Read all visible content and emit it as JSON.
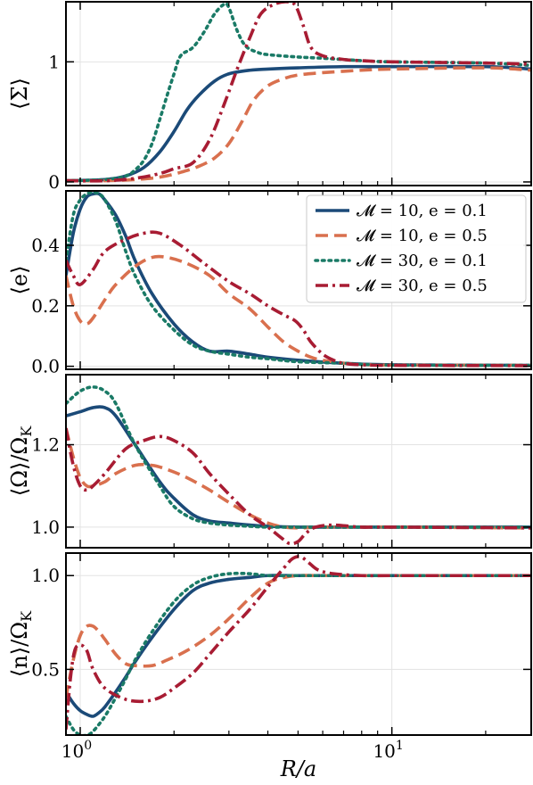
{
  "figure": {
    "xlabel": "R/a",
    "x_ticks": [
      {
        "value": 1,
        "label": "10",
        "exp": "0"
      },
      {
        "value": 10,
        "label": "10",
        "exp": "1"
      }
    ],
    "xlim": [
      0.9,
      28
    ],
    "xscale": "log"
  },
  "colors": {
    "M10_e01": "#1b4a78",
    "M10_e05": "#d9704e",
    "M30_e01": "#1a7a66",
    "M30_e05": "#a81c33"
  },
  "legend": {
    "placement": "upper-right of panel 2",
    "entries": [
      {
        "key": "M10_e01",
        "label": "𝓜 = 10, e = 0.1",
        "style": "solid"
      },
      {
        "key": "M10_e05",
        "label": "𝓜 = 10, e = 0.5",
        "style": "dashed"
      },
      {
        "key": "M30_e01",
        "label": "𝓜 = 30, e = 0.1",
        "style": "dotted"
      },
      {
        "key": "M30_e05",
        "label": "𝓜 = 30, e = 0.5",
        "style": "dashdot"
      }
    ]
  },
  "chart_data": [
    {
      "type": "line",
      "ylabel": "⟨Σ⟩",
      "ylim": [
        -0.03,
        1.5
      ],
      "yticks": [
        {
          "v": 0,
          "t": "0"
        },
        {
          "v": 1,
          "t": "1"
        }
      ],
      "grid": true,
      "series": [
        {
          "key": "M10_e01",
          "x": [
            0.9,
            1.2,
            1.4,
            1.6,
            1.8,
            2.0,
            2.2,
            2.4,
            2.7,
            3.0,
            3.5,
            4.0,
            5.0,
            7.0,
            10,
            20,
            28
          ],
          "y": [
            0.01,
            0.02,
            0.05,
            0.12,
            0.25,
            0.42,
            0.6,
            0.72,
            0.84,
            0.9,
            0.93,
            0.94,
            0.95,
            0.96,
            0.96,
            0.96,
            0.94
          ]
        },
        {
          "key": "M10_e05",
          "x": [
            0.9,
            1.2,
            1.5,
            1.8,
            2.1,
            2.4,
            2.7,
            3.0,
            3.3,
            3.6,
            4.0,
            4.5,
            5.0,
            6.0,
            8.0,
            10,
            20,
            28
          ],
          "y": [
            0.01,
            0.01,
            0.02,
            0.04,
            0.08,
            0.13,
            0.2,
            0.32,
            0.5,
            0.68,
            0.8,
            0.86,
            0.89,
            0.91,
            0.93,
            0.94,
            0.95,
            0.93
          ]
        },
        {
          "key": "M30_e01",
          "x": [
            0.9,
            1.2,
            1.4,
            1.5,
            1.6,
            1.7,
            1.8,
            1.9,
            2.0,
            2.1,
            2.3,
            2.5,
            2.7,
            2.9,
            3.0,
            3.2,
            3.4,
            3.7,
            4.0,
            5.0,
            6.0,
            8.0,
            10,
            20,
            28
          ],
          "y": [
            0.01,
            0.02,
            0.05,
            0.1,
            0.18,
            0.32,
            0.52,
            0.72,
            0.9,
            1.05,
            1.12,
            1.25,
            1.4,
            1.48,
            1.45,
            1.25,
            1.13,
            1.08,
            1.06,
            1.04,
            1.03,
            1.01,
            1.0,
            0.99,
            0.97
          ]
        },
        {
          "key": "M30_e05",
          "x": [
            0.9,
            1.2,
            1.5,
            1.8,
            2.0,
            2.3,
            2.6,
            2.9,
            3.2,
            3.5,
            3.8,
            4.2,
            4.6,
            4.9,
            5.2,
            5.5,
            6.0,
            7.0,
            8.0,
            10,
            20,
            28
          ],
          "y": [
            0.01,
            0.01,
            0.03,
            0.07,
            0.11,
            0.16,
            0.35,
            0.65,
            0.95,
            1.2,
            1.4,
            1.48,
            1.5,
            1.47,
            1.3,
            1.12,
            1.05,
            1.02,
            1.01,
            1.0,
            0.99,
            0.98
          ]
        }
      ]
    },
    {
      "type": "line",
      "ylabel": "⟨e⟩",
      "ylim": [
        -0.01,
        0.58
      ],
      "yticks": [
        {
          "v": 0,
          "t": "0.0"
        },
        {
          "v": 0.2,
          "t": "0.2"
        },
        {
          "v": 0.4,
          "t": "0.4"
        }
      ],
      "grid": true,
      "series": [
        {
          "key": "M10_e01",
          "x": [
            0.9,
            0.95,
            1.0,
            1.05,
            1.1,
            1.15,
            1.2,
            1.3,
            1.4,
            1.5,
            1.7,
            2.0,
            2.3,
            2.6,
            3.0,
            3.5,
            4.0,
            5.0,
            7.0,
            10,
            28
          ],
          "y": [
            0.3,
            0.44,
            0.52,
            0.56,
            0.57,
            0.57,
            0.55,
            0.5,
            0.43,
            0.35,
            0.24,
            0.14,
            0.08,
            0.05,
            0.05,
            0.04,
            0.03,
            0.02,
            0.01,
            0.005,
            0.003
          ]
        },
        {
          "key": "M10_e05",
          "x": [
            0.9,
            0.95,
            1.0,
            1.05,
            1.1,
            1.2,
            1.3,
            1.5,
            1.7,
            1.9,
            2.2,
            2.6,
            3.0,
            3.5,
            4.0,
            4.5,
            5.0,
            5.5,
            6.0,
            7.0,
            8.0,
            10,
            28
          ],
          "y": [
            0.3,
            0.2,
            0.15,
            0.14,
            0.16,
            0.22,
            0.27,
            0.33,
            0.36,
            0.36,
            0.34,
            0.3,
            0.24,
            0.19,
            0.13,
            0.08,
            0.05,
            0.03,
            0.02,
            0.01,
            0.006,
            0.004,
            0.003
          ]
        },
        {
          "key": "M30_e01",
          "x": [
            0.9,
            0.95,
            1.0,
            1.05,
            1.1,
            1.15,
            1.2,
            1.3,
            1.4,
            1.5,
            1.7,
            2.0,
            2.3,
            2.6,
            3.0,
            3.5,
            4.0,
            5.0,
            7.0,
            10,
            28
          ],
          "y": [
            0.35,
            0.5,
            0.55,
            0.57,
            0.575,
            0.57,
            0.55,
            0.48,
            0.38,
            0.3,
            0.2,
            0.12,
            0.07,
            0.05,
            0.04,
            0.03,
            0.025,
            0.015,
            0.01,
            0.004,
            0.003
          ]
        },
        {
          "key": "M30_e05",
          "x": [
            0.9,
            0.95,
            1.0,
            1.1,
            1.2,
            1.4,
            1.6,
            1.8,
            2.1,
            2.5,
            3.0,
            3.5,
            4.0,
            4.5,
            4.9,
            5.2,
            5.5,
            6.0,
            6.5,
            7.0,
            8.0,
            10,
            28
          ],
          "y": [
            0.35,
            0.3,
            0.27,
            0.32,
            0.38,
            0.42,
            0.44,
            0.44,
            0.4,
            0.34,
            0.28,
            0.24,
            0.2,
            0.17,
            0.15,
            0.12,
            0.08,
            0.04,
            0.02,
            0.01,
            0.005,
            0.003,
            0.002
          ]
        }
      ]
    },
    {
      "type": "line",
      "ylabel": "⟨Ω⟩/Ω_K",
      "ylim": [
        0.95,
        1.37
      ],
      "yticks": [
        {
          "v": 1.0,
          "t": "1.0"
        },
        {
          "v": 1.2,
          "t": "1.2"
        }
      ],
      "grid": true,
      "series": [
        {
          "key": "M10_e01",
          "x": [
            0.9,
            1.0,
            1.1,
            1.2,
            1.3,
            1.5,
            1.8,
            2.0,
            2.3,
            2.6,
            3.0,
            3.5,
            4.0,
            5.0,
            7.0,
            10,
            28
          ],
          "y": [
            1.27,
            1.28,
            1.29,
            1.29,
            1.27,
            1.2,
            1.11,
            1.07,
            1.03,
            1.015,
            1.01,
            1.005,
            1.002,
            1.0,
            1.0,
            1.0,
            1.0
          ]
        },
        {
          "key": "M10_e05",
          "x": [
            0.9,
            0.95,
            1.0,
            1.05,
            1.1,
            1.2,
            1.3,
            1.5,
            1.7,
            1.9,
            2.2,
            2.6,
            3.0,
            3.5,
            4.0,
            4.5,
            5.0,
            6.0,
            8.0,
            10,
            28
          ],
          "y": [
            1.24,
            1.17,
            1.12,
            1.1,
            1.1,
            1.11,
            1.13,
            1.15,
            1.15,
            1.14,
            1.12,
            1.09,
            1.06,
            1.03,
            1.01,
            1.0,
            0.998,
            1.0,
            1.0,
            1.0,
            0.998
          ]
        },
        {
          "key": "M30_e01",
          "x": [
            0.9,
            1.0,
            1.1,
            1.2,
            1.3,
            1.5,
            1.8,
            2.0,
            2.3,
            2.6,
            3.0,
            3.5,
            4.0,
            5.0,
            7.0,
            10,
            28
          ],
          "y": [
            1.3,
            1.33,
            1.34,
            1.33,
            1.3,
            1.2,
            1.1,
            1.05,
            1.02,
            1.01,
            1.005,
            1.002,
            1.0,
            1.0,
            1.0,
            1.0,
            1.0
          ]
        },
        {
          "key": "M30_e05",
          "x": [
            0.9,
            0.95,
            1.0,
            1.05,
            1.1,
            1.2,
            1.4,
            1.6,
            1.8,
            2.0,
            2.3,
            2.6,
            3.0,
            3.5,
            4.0,
            4.4,
            4.7,
            5.0,
            5.3,
            5.7,
            6.5,
            8.0,
            10,
            28
          ],
          "y": [
            1.24,
            1.15,
            1.1,
            1.09,
            1.1,
            1.13,
            1.19,
            1.21,
            1.22,
            1.21,
            1.18,
            1.13,
            1.08,
            1.03,
            1.0,
            0.975,
            0.96,
            0.965,
            0.985,
            1.0,
            1.005,
            1.0,
            1.0,
            0.998
          ]
        }
      ]
    },
    {
      "type": "line",
      "ylabel": "⟨n⟩/Ω_K",
      "ylim": [
        0.15,
        1.12
      ],
      "yticks": [
        {
          "v": 0.5,
          "t": "0.5"
        },
        {
          "v": 1.0,
          "t": "1.0"
        }
      ],
      "grid": true,
      "series": [
        {
          "key": "M10_e01",
          "x": [
            0.9,
            0.95,
            1.0,
            1.05,
            1.1,
            1.15,
            1.2,
            1.3,
            1.4,
            1.5,
            1.7,
            2.0,
            2.3,
            2.6,
            3.0,
            3.5,
            4.0,
            5.0,
            7.0,
            10,
            28
          ],
          "y": [
            0.38,
            0.32,
            0.28,
            0.26,
            0.25,
            0.27,
            0.3,
            0.38,
            0.46,
            0.54,
            0.67,
            0.82,
            0.92,
            0.96,
            0.98,
            0.99,
            1.0,
            1.0,
            1.0,
            1.0,
            1.0
          ]
        },
        {
          "key": "M10_e05",
          "x": [
            0.9,
            0.95,
            1.0,
            1.05,
            1.1,
            1.15,
            1.2,
            1.3,
            1.4,
            1.5,
            1.7,
            1.9,
            2.2,
            2.6,
            3.0,
            3.5,
            4.0,
            4.5,
            5.0,
            6.0,
            8.0,
            10,
            28
          ],
          "y": [
            0.35,
            0.55,
            0.68,
            0.73,
            0.73,
            0.7,
            0.66,
            0.58,
            0.53,
            0.52,
            0.52,
            0.55,
            0.6,
            0.68,
            0.77,
            0.88,
            0.96,
            0.99,
            1.0,
            1.0,
            1.0,
            1.0,
            1.0
          ]
        },
        {
          "key": "M30_e01",
          "x": [
            0.9,
            0.95,
            1.0,
            1.05,
            1.1,
            1.2,
            1.3,
            1.4,
            1.5,
            1.7,
            2.0,
            2.3,
            2.6,
            3.0,
            3.5,
            4.0,
            5.0,
            7.0,
            10,
            28
          ],
          "y": [
            0.25,
            0.18,
            0.15,
            0.15,
            0.17,
            0.25,
            0.35,
            0.45,
            0.55,
            0.7,
            0.86,
            0.95,
            0.99,
            1.01,
            1.01,
            1.0,
            1.0,
            1.0,
            1.0,
            1.0
          ]
        },
        {
          "key": "M30_e05",
          "x": [
            0.9,
            0.93,
            0.96,
            1.0,
            1.05,
            1.1,
            1.2,
            1.4,
            1.6,
            1.8,
            2.0,
            2.3,
            2.6,
            3.0,
            3.5,
            4.0,
            4.5,
            4.8,
            5.1,
            5.4,
            5.8,
            6.5,
            8.0,
            10,
            28
          ],
          "y": [
            0.18,
            0.45,
            0.6,
            0.63,
            0.6,
            0.5,
            0.4,
            0.34,
            0.33,
            0.35,
            0.4,
            0.48,
            0.58,
            0.7,
            0.82,
            0.94,
            1.04,
            1.09,
            1.1,
            1.07,
            1.03,
            1.01,
            1.0,
            1.0,
            1.0
          ]
        }
      ]
    }
  ]
}
